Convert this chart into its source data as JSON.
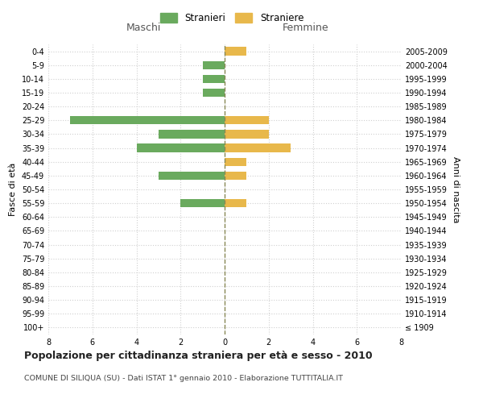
{
  "age_groups": [
    "100+",
    "95-99",
    "90-94",
    "85-89",
    "80-84",
    "75-79",
    "70-74",
    "65-69",
    "60-64",
    "55-59",
    "50-54",
    "45-49",
    "40-44",
    "35-39",
    "30-34",
    "25-29",
    "20-24",
    "15-19",
    "10-14",
    "5-9",
    "0-4"
  ],
  "birth_years": [
    "≤ 1909",
    "1910-1914",
    "1915-1919",
    "1920-1924",
    "1925-1929",
    "1930-1934",
    "1935-1939",
    "1940-1944",
    "1945-1949",
    "1950-1954",
    "1955-1959",
    "1960-1964",
    "1965-1969",
    "1970-1974",
    "1975-1979",
    "1980-1984",
    "1985-1989",
    "1990-1994",
    "1995-1999",
    "2000-2004",
    "2005-2009"
  ],
  "maschi": [
    0,
    0,
    0,
    0,
    0,
    0,
    0,
    0,
    0,
    2,
    0,
    3,
    0,
    4,
    3,
    7,
    0,
    1,
    1,
    1,
    0
  ],
  "femmine": [
    0,
    0,
    0,
    0,
    0,
    0,
    0,
    0,
    0,
    1,
    0,
    1,
    1,
    3,
    2,
    2,
    0,
    0,
    0,
    0,
    1
  ],
  "color_maschi": "#6aaa5e",
  "color_femmine": "#e8b84b",
  "title": "Popolazione per cittadinanza straniera per età e sesso - 2010",
  "subtitle": "COMUNE DI SILIQUA (SU) - Dati ISTAT 1° gennaio 2010 - Elaborazione TUTTITALIA.IT",
  "xlabel_left": "Maschi",
  "xlabel_right": "Femmine",
  "ylabel_left": "Fasce di età",
  "ylabel_right": "Anni di nascita",
  "legend_maschi": "Stranieri",
  "legend_femmine": "Straniere",
  "xlim": 8,
  "background_color": "#ffffff",
  "grid_color": "#d0d0d0"
}
